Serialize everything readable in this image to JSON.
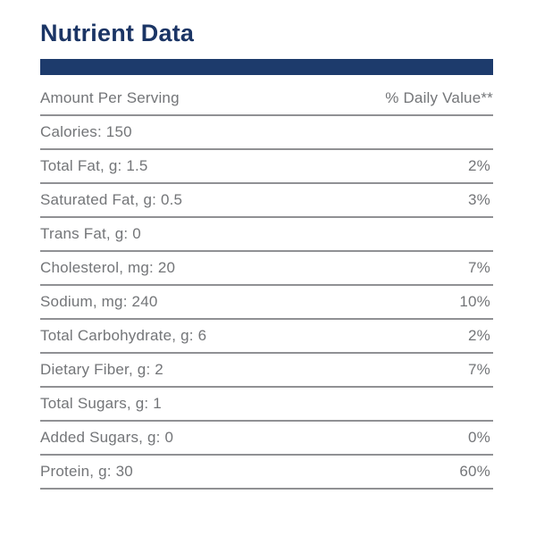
{
  "colors": {
    "navy_bar": "#1d3b6c",
    "title_navy": "#1b3565",
    "text_gray": "#737578",
    "divider_gray": "#909194"
  },
  "panel": {
    "title": "Nutrient Data",
    "header": {
      "amount_label": "Amount Per Serving",
      "daily_value_label": "% Daily Value**"
    },
    "rows": [
      {
        "label": "Calories: 150",
        "daily_value": ""
      },
      {
        "label": "Total Fat, g: 1.5",
        "daily_value": "2%"
      },
      {
        "label": "Saturated Fat, g: 0.5",
        "daily_value": "3%"
      },
      {
        "label": "Trans Fat, g: 0",
        "daily_value": ""
      },
      {
        "label": "Cholesterol, mg: 20",
        "daily_value": "7%"
      },
      {
        "label": "Sodium, mg: 240",
        "daily_value": "10%"
      },
      {
        "label": "Total Carbohydrate, g: 6",
        "daily_value": "2%"
      },
      {
        "label": "Dietary Fiber, g: 2",
        "daily_value": "7%"
      },
      {
        "label": "Total Sugars, g: 1",
        "daily_value": ""
      },
      {
        "label": "Added Sugars, g: 0",
        "daily_value": "0%"
      },
      {
        "label": "Protein, g: 30",
        "daily_value": "60%"
      }
    ]
  }
}
